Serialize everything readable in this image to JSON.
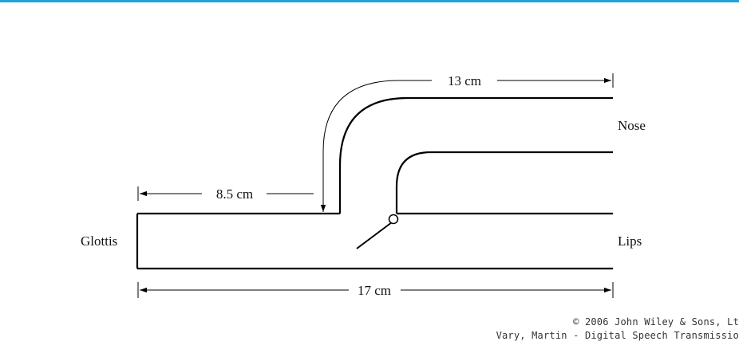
{
  "colors": {
    "top_rule": "#1fa3d8",
    "line": "#000000"
  },
  "diagram": {
    "labels": {
      "glottis": "Glottis",
      "nose": "Nose",
      "lips": "Lips",
      "dim_nasal_branch": "13 cm",
      "dim_branch_point": "8.5 cm",
      "dim_total": "17 cm"
    }
  },
  "footer": {
    "copyright": "© 2006 John Wiley & Sons, Lt",
    "source": "Vary, Martin - Digital Speech Transmissio"
  }
}
